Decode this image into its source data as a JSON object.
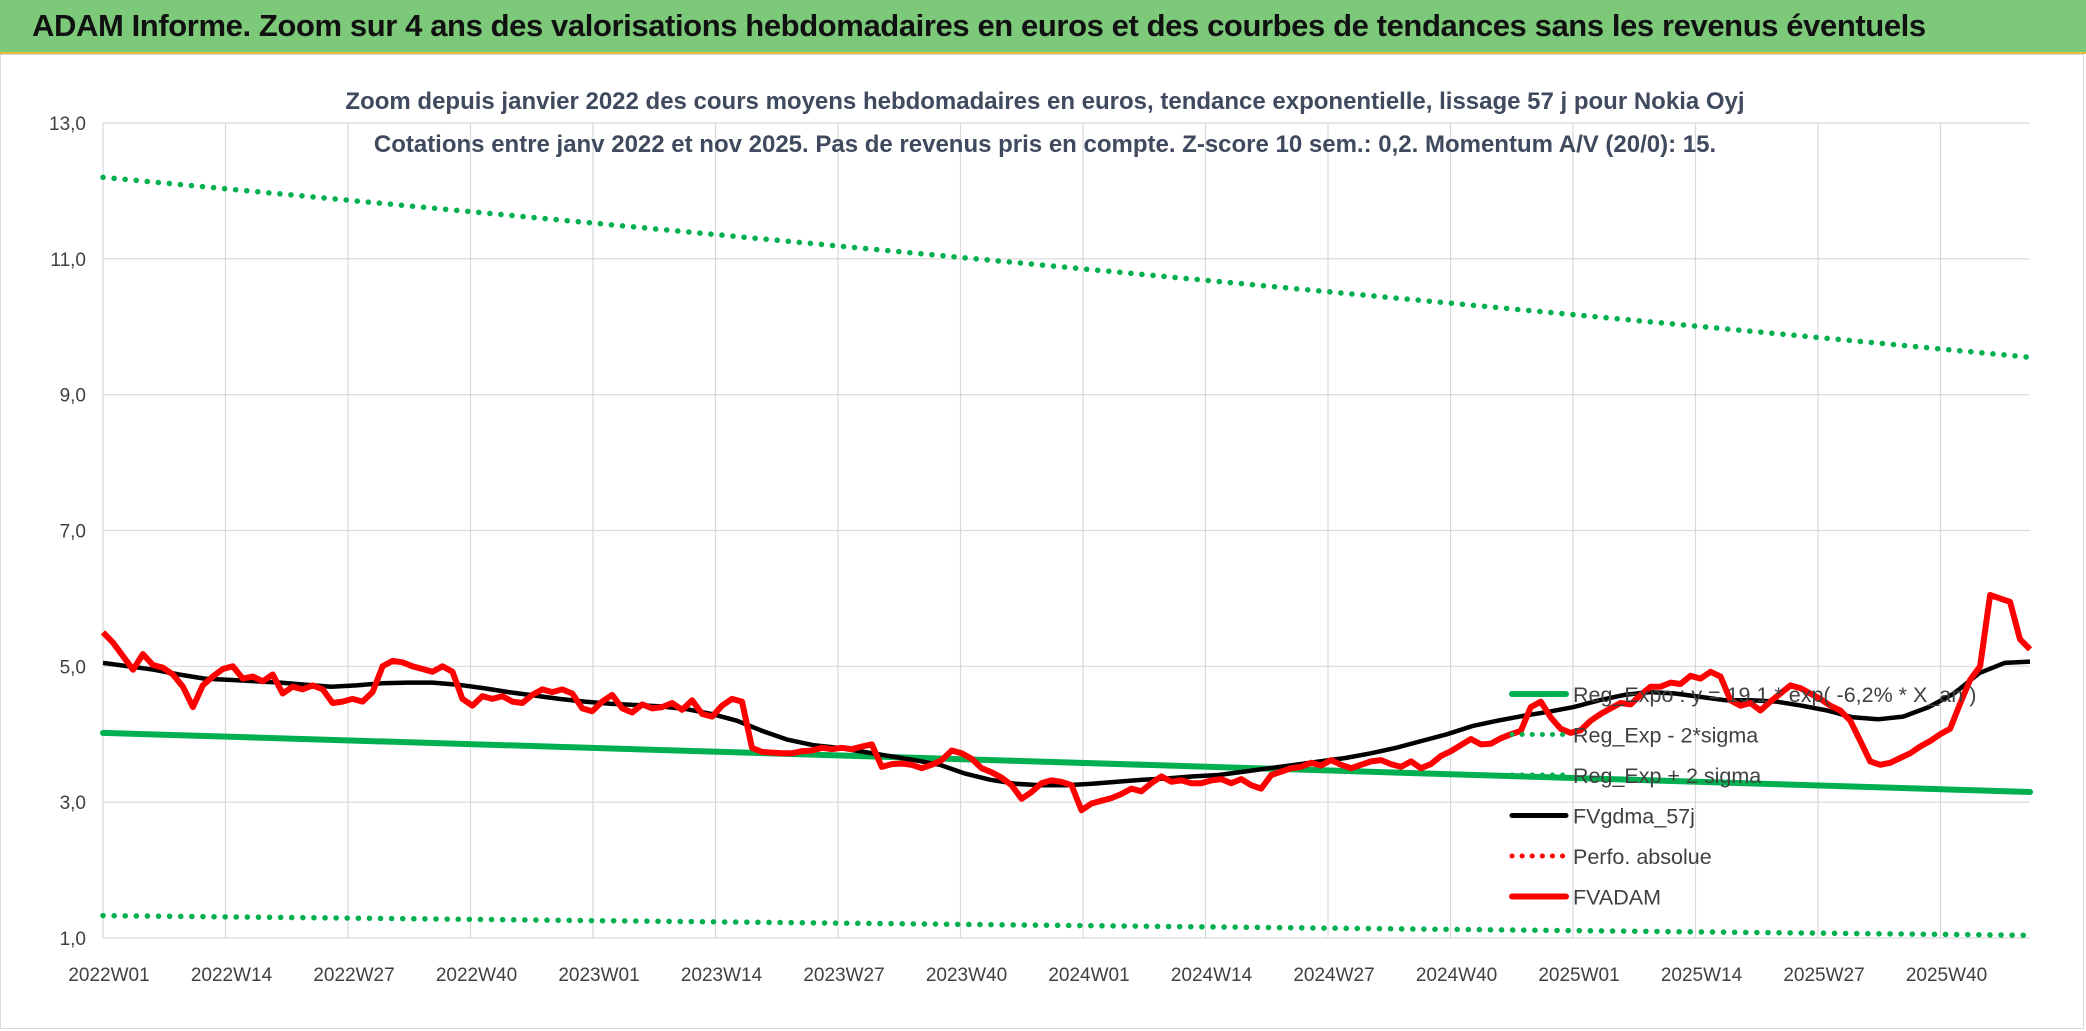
{
  "header": {
    "title": "ADAM Informe. Zoom sur 4 ans des valorisations hebdomadaires en euros et des courbes de tendances sans les revenus éventuels"
  },
  "chart_data": {
    "type": "line",
    "title": "Zoom depuis janvier 2022 des cours moyens hebdomadaires en euros, tendance exponentielle, lissage 57 j pour Nokia Oyj",
    "subtitle": "Cotations entre janv 2022 et nov 2025. Pas de revenus pris en compte. Z-score 10 sem.: 0,2. Momentum A/V (20/0): 15.",
    "xlabel": "",
    "ylabel": "",
    "ylim": [
      1.0,
      13.0
    ],
    "y_ticks": [
      "1,0",
      "3,0",
      "5,0",
      "7,0",
      "9,0",
      "11,0",
      "13,0"
    ],
    "x_ticks": [
      "2022W01",
      "2022W14",
      "2022W27",
      "2022W40",
      "2023W01",
      "2023W14",
      "2023W27",
      "2023W40",
      "2024W01",
      "2024W14",
      "2024W27",
      "2024W40",
      "2025W01",
      "2025W14",
      "2025W27",
      "2025W40"
    ],
    "grid": true,
    "legend_position": "lower-right",
    "series": [
      {
        "name": "Reg_Expo : y = 19,1 * exp( -6,2% *  X_an )",
        "color": "#00b050",
        "style": "solid",
        "start": 4.02,
        "end": 3.15
      },
      {
        "name": "Reg_Exp - 2*sigma",
        "color": "#00b050",
        "style": "dotted",
        "start": 1.33,
        "end": 1.04
      },
      {
        "name": "Reg_Exp + 2 sigma",
        "color": "#00b050",
        "style": "dotted",
        "start": 12.2,
        "end": 9.55
      },
      {
        "name": "FVgdma_57j",
        "color": "#000000",
        "style": "solid",
        "values": [
          5.05,
          5.0,
          4.95,
          4.88,
          4.82,
          4.8,
          4.78,
          4.76,
          4.73,
          4.7,
          4.72,
          4.75,
          4.76,
          4.76,
          4.73,
          4.68,
          4.62,
          4.57,
          4.52,
          4.48,
          4.45,
          4.43,
          4.41,
          4.37,
          4.3,
          4.2,
          4.05,
          3.92,
          3.84,
          3.8,
          3.74,
          3.68,
          3.62,
          3.55,
          3.42,
          3.33,
          3.27,
          3.25,
          3.25,
          3.27,
          3.3,
          3.33,
          3.35,
          3.38,
          3.4,
          3.45,
          3.5,
          3.55,
          3.6,
          3.65,
          3.72,
          3.8,
          3.9,
          4.0,
          4.12,
          4.2,
          4.27,
          4.33,
          4.4,
          4.5,
          4.58,
          4.62,
          4.6,
          4.55,
          4.5,
          4.5,
          4.48,
          4.42,
          4.35,
          4.25,
          4.22,
          4.26,
          4.4,
          4.6,
          4.9,
          5.05,
          5.07
        ]
      },
      {
        "name": "Perfo. absolue",
        "color": "#ff0000",
        "style": "dotted",
        "values": []
      },
      {
        "name": "FVADAM",
        "color": "#ff0000",
        "style": "solid",
        "values": [
          5.5,
          5.35,
          5.15,
          4.95,
          5.18,
          5.02,
          4.98,
          4.88,
          4.7,
          4.4,
          4.72,
          4.85,
          4.96,
          5.0,
          4.82,
          4.85,
          4.78,
          4.88,
          4.6,
          4.7,
          4.66,
          4.72,
          4.66,
          4.46,
          4.48,
          4.52,
          4.48,
          4.62,
          5.0,
          5.08,
          5.06,
          5.0,
          4.96,
          4.92,
          5.0,
          4.92,
          4.52,
          4.42,
          4.56,
          4.52,
          4.56,
          4.48,
          4.46,
          4.58,
          4.66,
          4.62,
          4.66,
          4.6,
          4.38,
          4.34,
          4.48,
          4.58,
          4.38,
          4.32,
          4.44,
          4.38,
          4.4,
          4.46,
          4.36,
          4.5,
          4.3,
          4.26,
          4.42,
          4.52,
          4.48,
          3.8,
          3.74,
          3.73,
          3.72,
          3.72,
          3.75,
          3.76,
          3.8,
          3.78,
          3.8,
          3.78,
          3.82,
          3.85,
          3.52,
          3.56,
          3.57,
          3.55,
          3.5,
          3.55,
          3.62,
          3.76,
          3.72,
          3.64,
          3.5,
          3.44,
          3.36,
          3.25,
          3.05,
          3.15,
          3.28,
          3.32,
          3.3,
          3.25,
          2.88,
          2.98,
          3.02,
          3.06,
          3.12,
          3.2,
          3.16,
          3.28,
          3.38,
          3.3,
          3.32,
          3.28,
          3.28,
          3.32,
          3.34,
          3.28,
          3.34,
          3.25,
          3.2,
          3.4,
          3.45,
          3.5,
          3.52,
          3.58,
          3.54,
          3.62,
          3.55,
          3.5,
          3.55,
          3.6,
          3.62,
          3.56,
          3.52,
          3.6,
          3.5,
          3.56,
          3.68,
          3.75,
          3.84,
          3.93,
          3.85,
          3.86,
          3.94,
          4.0,
          4.05,
          4.4,
          4.48,
          4.25,
          4.08,
          4.02,
          4.06,
          4.2,
          4.3,
          4.38,
          4.46,
          4.44,
          4.58,
          4.7,
          4.7,
          4.76,
          4.74,
          4.86,
          4.82,
          4.92,
          4.85,
          4.5,
          4.42,
          4.46,
          4.35,
          4.48,
          4.6,
          4.72,
          4.68,
          4.6,
          4.52,
          4.42,
          4.35,
          4.2,
          3.9,
          3.6,
          3.55,
          3.58,
          3.65,
          3.72,
          3.82,
          3.9,
          4.0,
          4.08,
          4.45,
          4.8,
          5.0,
          6.05,
          6.0,
          5.95,
          5.4,
          5.25
        ]
      }
    ]
  }
}
